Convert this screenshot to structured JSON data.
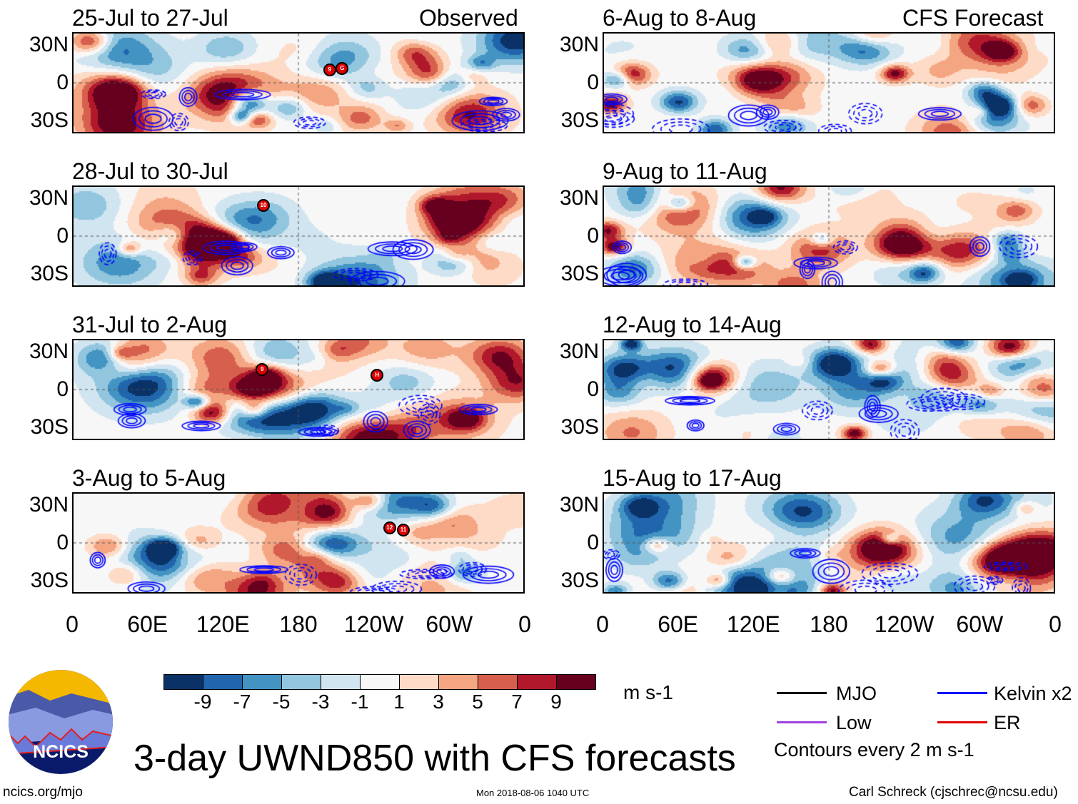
{
  "headers": {
    "observed": "Observed",
    "forecast": "CFS Forecast"
  },
  "panels": [
    {
      "title": "25-Jul to 27-Jul",
      "column": "observed",
      "storms": [
        {
          "label": "9",
          "lon": 205,
          "lat": 12
        },
        {
          "label": "G",
          "lon": 215,
          "lat": 13
        }
      ],
      "seed": 11
    },
    {
      "title": "28-Jul to 30-Jul",
      "column": "observed",
      "storms": [
        {
          "label": "10",
          "lon": 152,
          "lat": 28
        }
      ],
      "seed": 23
    },
    {
      "title": "31-Jul to 2-Aug",
      "column": "observed",
      "storms": [
        {
          "label": "9",
          "lon": 151,
          "lat": 18
        },
        {
          "label": "H",
          "lon": 243,
          "lat": 13
        }
      ],
      "seed": 37
    },
    {
      "title": "3-Aug to 5-Aug",
      "column": "observed",
      "storms": [
        {
          "label": "12",
          "lon": 253,
          "lat": 14
        },
        {
          "label": "11",
          "lon": 264,
          "lat": 12
        }
      ],
      "seed": 41
    },
    {
      "title": "6-Aug to 8-Aug",
      "column": "forecast",
      "storms": [],
      "seed": 53
    },
    {
      "title": "9-Aug to 11-Aug",
      "column": "forecast",
      "storms": [],
      "seed": 67
    },
    {
      "title": "12-Aug to 14-Aug",
      "column": "forecast",
      "storms": [],
      "seed": 71
    },
    {
      "title": "15-Aug to 17-Aug",
      "column": "forecast",
      "storms": [],
      "seed": 89
    }
  ],
  "y_ticks": [
    "30N",
    "0",
    "30S"
  ],
  "x_ticks": [
    "0",
    "60E",
    "120E",
    "180",
    "120W",
    "60W",
    "0"
  ],
  "colorbar": {
    "colors": [
      "#0a3266",
      "#2166ac",
      "#4393c3",
      "#92c5de",
      "#d1e5f0",
      "#f7f7f7",
      "#fddbc7",
      "#f4a582",
      "#d6604d",
      "#b2182b",
      "#67001f"
    ],
    "labels": [
      "-9",
      "-7",
      "-5",
      "-3",
      "-1",
      "1",
      "3",
      "5",
      "7",
      "9"
    ],
    "units": "m s-1"
  },
  "legend": {
    "items": [
      {
        "label": "MJO",
        "color": "#000000"
      },
      {
        "label": "Kelvin x2",
        "color": "#0000ff"
      },
      {
        "label": "Low",
        "color": "#a040e0"
      },
      {
        "label": "ER",
        "color": "#e00000"
      }
    ],
    "contours_note": "Contours every 2 m s-1"
  },
  "logo_text": "NCICS",
  "title": "3-day UWND850 with CFS forecasts",
  "footer": {
    "url": "ncics.org/mjo",
    "timestamp": "Mon 2018-08-06 1040 UTC",
    "author": "Carl Schreck (cjschrec@ncsu.edu)"
  }
}
